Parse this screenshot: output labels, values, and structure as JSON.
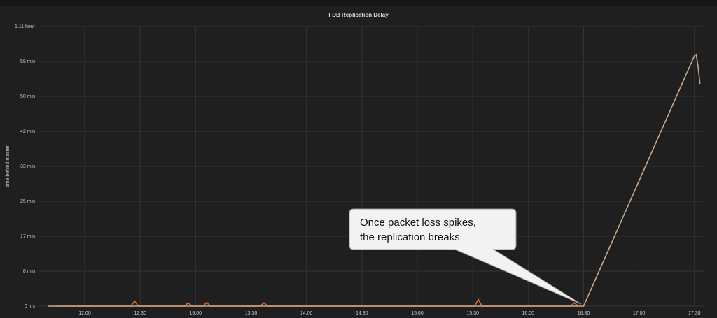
{
  "chart_data": {
    "type": "line",
    "title": "FDB Replication Delay",
    "y_label": "time behind master",
    "annotation": [
      "Once packet loss spikes,",
      "the replication breaks"
    ],
    "grid": true,
    "xlim": [
      "11:35",
      "17:35"
    ],
    "xticks": [
      "12:00",
      "12:30",
      "13:00",
      "13:30",
      "14:00",
      "14:30",
      "15:00",
      "15:30",
      "16:00",
      "16:30",
      "17:00",
      "17:30"
    ],
    "ylim": [
      0,
      66.67
    ],
    "yticks": [
      {
        "value": 0,
        "label": "0 ms"
      },
      {
        "value": 8.33,
        "label": "8 min"
      },
      {
        "value": 16.67,
        "label": "17 min"
      },
      {
        "value": 25,
        "label": "25 min"
      },
      {
        "value": 33.33,
        "label": "33 min"
      },
      {
        "value": 41.67,
        "label": "42 min"
      },
      {
        "value": 50,
        "label": "50 min"
      },
      {
        "value": 58.33,
        "label": "58 min"
      },
      {
        "value": 66.67,
        "label": "1.11 hour"
      }
    ],
    "series": [
      {
        "color": "#c9a98c",
        "x": [
          "11:40",
          "16:30",
          "17:30",
          "17:31",
          "17:32",
          "17:33"
        ],
        "values": [
          0,
          0,
          59.7,
          60,
          57,
          53
        ]
      },
      {
        "color": "#e0702c",
        "x": [
          "11:45",
          "12:25",
          "12:27",
          "12:29",
          "12:54",
          "12:56",
          "12:58",
          "13:04",
          "13:06",
          "13:08",
          "13:35",
          "13:37",
          "13:39",
          "15:31",
          "15:33",
          "15:35",
          "16:23",
          "16:25",
          "16:27"
        ],
        "values": [
          0,
          0,
          1.2,
          0,
          0,
          0.8,
          0,
          0,
          0.9,
          0,
          0,
          0.8,
          0,
          0,
          1.6,
          0,
          0,
          0.8,
          0
        ]
      }
    ]
  }
}
